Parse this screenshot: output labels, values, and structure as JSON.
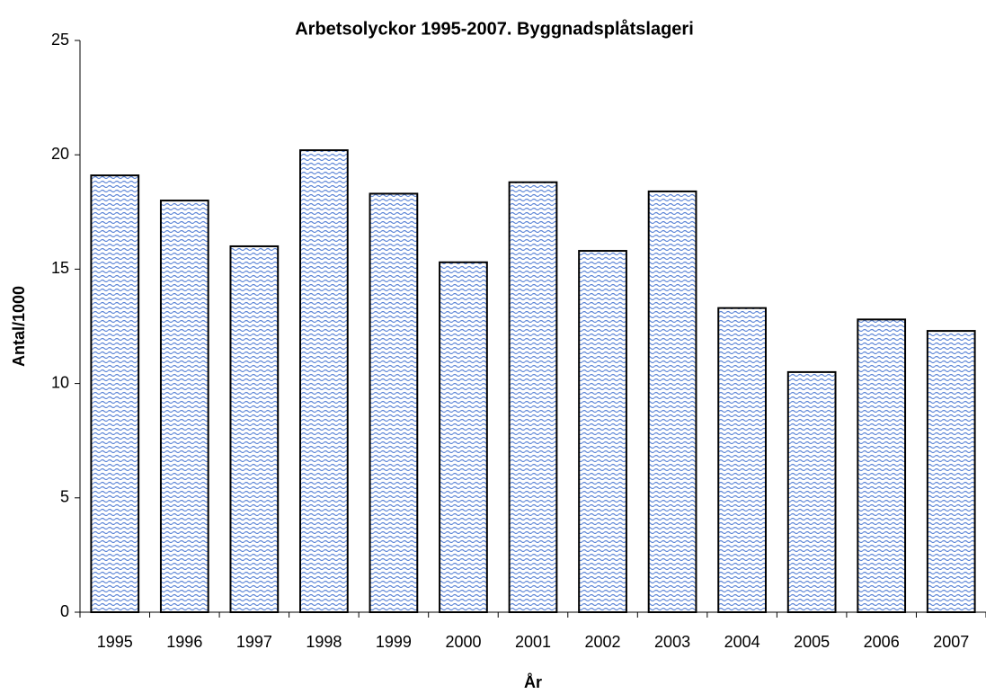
{
  "chart_data": {
    "type": "bar",
    "title": "Arbetsolyckor 1995-2007. Byggnadsplåtslageri",
    "x_label": "År",
    "y_label": "Antal/1000",
    "categories": [
      "1995",
      "1996",
      "1997",
      "1998",
      "1999",
      "2000",
      "2001",
      "2002",
      "2003",
      "2004",
      "2005",
      "2006",
      "2007"
    ],
    "values": [
      19.1,
      18.0,
      16.0,
      20.2,
      18.3,
      15.3,
      18.8,
      15.8,
      18.4,
      13.3,
      10.5,
      12.8,
      12.3
    ],
    "color": "#5b84d6",
    "ylim": [
      0,
      25
    ],
    "yticks": [
      0,
      5,
      10,
      15,
      20,
      25
    ],
    "grid": false
  }
}
